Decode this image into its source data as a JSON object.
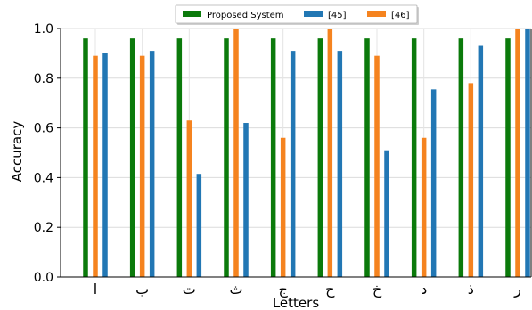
{
  "chart_data": {
    "type": "bar",
    "xlabel": "Letters",
    "ylabel": "Accuracy",
    "ylim": [
      0,
      1.0
    ],
    "yticks": [
      "0.0",
      "0.2",
      "0.4",
      "0.6",
      "0.8",
      "1.0"
    ],
    "grid": true,
    "legend_position": "top-center",
    "categories": [
      "ا",
      "ب",
      "ت",
      "ث",
      "ج",
      "ح",
      "خ",
      "د",
      "ذ",
      "ر"
    ],
    "series": [
      {
        "name": "Proposed System",
        "color": "#0b7a0b",
        "values": [
          0.96,
          0.96,
          0.96,
          0.96,
          0.96,
          0.96,
          0.96,
          0.96,
          0.96,
          0.96
        ]
      },
      {
        "name": "[46]",
        "color": "#f5831f",
        "values": [
          0.89,
          0.89,
          0.63,
          1.0,
          0.56,
          1.0,
          0.89,
          0.56,
          0.78,
          1.0
        ]
      },
      {
        "name": "[45]",
        "color": "#2277b4",
        "values": [
          0.9,
          0.91,
          0.415,
          0.62,
          0.91,
          0.91,
          0.51,
          0.755,
          0.93,
          1.0
        ]
      }
    ],
    "legend_order": [
      0,
      2,
      1
    ]
  }
}
